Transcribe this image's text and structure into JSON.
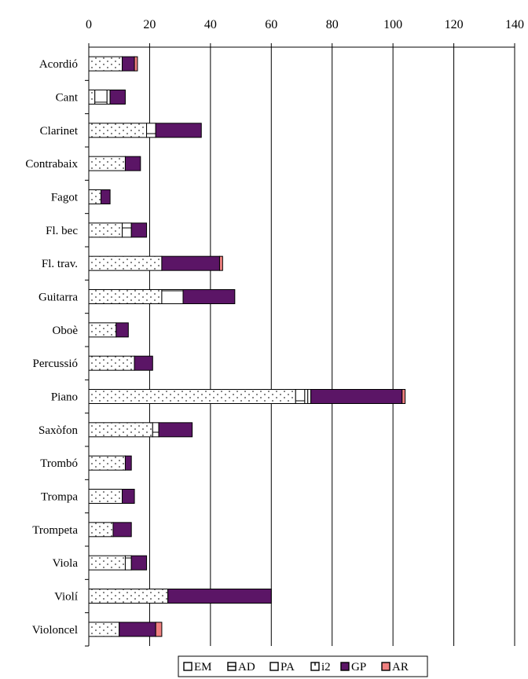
{
  "chart_data": {
    "type": "bar",
    "orientation": "horizontal",
    "stacked": true,
    "x_axis_position": "top",
    "xlim": [
      0,
      140
    ],
    "x_ticks": [
      0,
      20,
      40,
      60,
      80,
      100,
      120,
      140
    ],
    "grid": "vertical",
    "legend_position": "bottom",
    "categories": [
      "Acordió",
      "Cant",
      "Clarinet",
      "Contrabaix",
      "Fagot",
      "Fl. bec",
      "Fl. trav.",
      "Guitarra",
      "Oboè",
      "Percussió",
      "Piano",
      "Saxòfon",
      "Trombó",
      "Trompa",
      "Trompeta",
      "Viola",
      "Violí",
      "Violoncel"
    ],
    "series": [
      {
        "name": "EM",
        "pattern": "dots",
        "color": "#ffffff",
        "values": [
          11,
          2,
          19,
          12,
          4,
          11,
          24,
          24,
          9,
          15,
          68,
          21,
          12,
          11,
          8,
          12,
          26,
          10
        ]
      },
      {
        "name": "AD",
        "pattern": "hline",
        "color": "#ffffff",
        "values": [
          0,
          4,
          3,
          0,
          0,
          3,
          0,
          7,
          0,
          0,
          3,
          2,
          0,
          0,
          0,
          2,
          0,
          0
        ]
      },
      {
        "name": "PA",
        "pattern": "none",
        "color": "#ffffff",
        "values": [
          0,
          1,
          0,
          0,
          0,
          0,
          0,
          0,
          0,
          0,
          1,
          0,
          0,
          0,
          0,
          0,
          0,
          0
        ]
      },
      {
        "name": "i2",
        "pattern": "vline",
        "color": "#ffffff",
        "values": [
          0,
          0,
          0,
          0,
          0,
          0,
          0,
          0,
          0,
          0,
          1,
          0,
          0,
          0,
          0,
          0,
          0,
          0
        ]
      },
      {
        "name": "GP",
        "pattern": "solid",
        "color": "#5b1566",
        "values": [
          4,
          5,
          15,
          5,
          3,
          5,
          19,
          17,
          4,
          6,
          30,
          11,
          2,
          4,
          6,
          5,
          34,
          12
        ]
      },
      {
        "name": "AR",
        "pattern": "solid",
        "color": "#f08080",
        "values": [
          1,
          0,
          0,
          0,
          0,
          0,
          1,
          0,
          0,
          0,
          1,
          0,
          0,
          0,
          0,
          0,
          0,
          2
        ]
      }
    ]
  }
}
